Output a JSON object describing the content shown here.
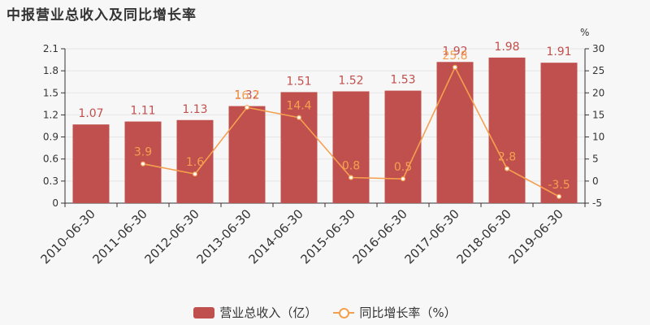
{
  "title": "中报营业总收入及同比增长率",
  "colors": {
    "bar": "#c0504d",
    "line": "#f5a050",
    "axis": "#333333",
    "grid": "#e6e6e6",
    "barLabel": "#c0504d",
    "lineLabel": "#f5a050"
  },
  "chart_data": {
    "type": "bar",
    "categories": [
      "2010-06-30",
      "2011-06-30",
      "2012-06-30",
      "2013-06-30",
      "2014-06-30",
      "2015-06-30",
      "2016-06-30",
      "2017-06-30",
      "2018-06-30",
      "2019-06-30"
    ],
    "series": [
      {
        "name": "营业总收入（亿）",
        "type": "bar",
        "axis": "left",
        "values": [
          1.07,
          1.11,
          1.13,
          1.32,
          1.51,
          1.52,
          1.53,
          1.92,
          1.98,
          1.91
        ],
        "labels": [
          "1.07",
          "1.11",
          "1.13",
          "1.32",
          "1.51",
          "1.52",
          "1.53",
          "1.92",
          "1.98",
          "1.91"
        ]
      },
      {
        "name": "同比增长率（%）",
        "type": "line",
        "axis": "right",
        "values": [
          null,
          3.9,
          1.6,
          16.7,
          14.4,
          0.8,
          0.5,
          25.8,
          2.8,
          -3.5
        ],
        "labels": [
          "",
          "3.9",
          "1.6",
          "16.7",
          "14.4",
          "0.8",
          "0.5",
          "25.8",
          "2.8",
          "-3.5"
        ]
      }
    ],
    "yLeft": {
      "min": 0,
      "max": 2.1,
      "ticks": [
        0,
        0.3,
        0.6,
        0.9,
        1.2,
        1.5,
        1.8,
        2.1
      ],
      "tickLabels": [
        "0",
        "0.3",
        "0.6",
        "0.9",
        "1.2",
        "1.5",
        "1.8",
        "2.1"
      ]
    },
    "yRight": {
      "min": -5,
      "max": 30,
      "ticks": [
        -5,
        0,
        5,
        10,
        15,
        20,
        25,
        30
      ],
      "tickLabels": [
        "-5",
        "0",
        "5",
        "10",
        "15",
        "20",
        "25",
        "30"
      ],
      "unit": "%"
    },
    "grid": true,
    "legend": "bottom"
  },
  "legend": {
    "bar_label": "营业总收入（亿）",
    "line_label": "同比增长率（%）"
  }
}
